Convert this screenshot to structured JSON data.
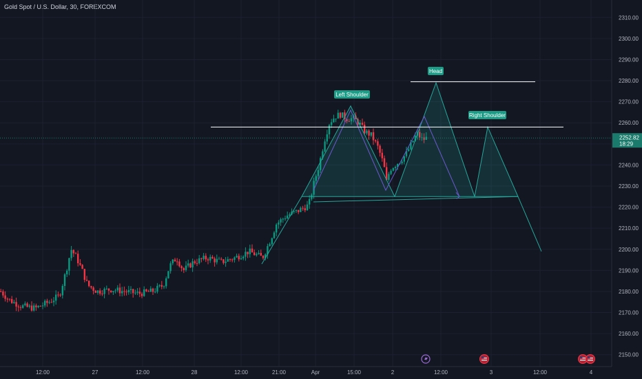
{
  "header": {
    "title": "Gold Spot / U.S. Dollar, 30, FOREXCOM"
  },
  "colors": {
    "background": "#131722",
    "up": "#089981",
    "down": "#f23645",
    "pattern_fill": "#26a69a",
    "pattern_line": "#26a69a",
    "projection_line": "#6a5acd",
    "neckline": "#ffffff",
    "price_tag": "#1a7a6c"
  },
  "chart_data": {
    "type": "candlestick",
    "title": "Gold Spot / U.S. Dollar, 30, FOREXCOM",
    "ylim": [
      2145,
      2315
    ],
    "y_ticks": [
      2150,
      2160,
      2170,
      2180,
      2190,
      2200,
      2210,
      2220,
      2230,
      2240,
      2250,
      2260,
      2270,
      2280,
      2290,
      2300,
      2310
    ],
    "x_ticks": [
      "12:00",
      "27",
      "12:00",
      "28",
      "12:00",
      "21:00",
      "Apr",
      "15:00",
      "2",
      "12:00",
      "3",
      "12:00",
      "4"
    ],
    "last_price": "2252.82",
    "countdown": "18:29",
    "price_path": [
      [
        0,
        2180
      ],
      [
        12,
        2176
      ],
      [
        30,
        2173
      ],
      [
        50,
        2172
      ],
      [
        70,
        2175
      ],
      [
        85,
        2178
      ],
      [
        95,
        2190
      ],
      [
        102,
        2200
      ],
      [
        110,
        2196
      ],
      [
        118,
        2190
      ],
      [
        126,
        2183
      ],
      [
        140,
        2180
      ],
      [
        160,
        2181
      ],
      [
        180,
        2180
      ],
      [
        200,
        2179
      ],
      [
        220,
        2180
      ],
      [
        236,
        2183
      ],
      [
        245,
        2192
      ],
      [
        255,
        2196
      ],
      [
        265,
        2190
      ],
      [
        280,
        2194
      ],
      [
        300,
        2196
      ],
      [
        320,
        2194
      ],
      [
        340,
        2196
      ],
      [
        360,
        2199
      ],
      [
        380,
        2196
      ],
      [
        392,
        2205
      ],
      [
        400,
        2212
      ],
      [
        415,
        2216
      ],
      [
        430,
        2218
      ],
      [
        447,
        2221
      ],
      [
        455,
        2232
      ],
      [
        462,
        2240
      ],
      [
        470,
        2252
      ],
      [
        477,
        2260
      ],
      [
        485,
        2263
      ],
      [
        493,
        2264
      ],
      [
        502,
        2262
      ],
      [
        512,
        2262
      ],
      [
        520,
        2260
      ],
      [
        528,
        2256
      ],
      [
        538,
        2254
      ],
      [
        548,
        2248
      ],
      [
        556,
        2240
      ],
      [
        560,
        2232
      ],
      [
        565,
        2238
      ],
      [
        572,
        2240
      ],
      [
        580,
        2242
      ],
      [
        588,
        2245
      ],
      [
        596,
        2250
      ],
      [
        604,
        2255
      ],
      [
        612,
        2252
      ],
      [
        620,
        2253
      ]
    ],
    "patterns": {
      "neckline_price": 2258,
      "left_shoulder": {
        "label": "Left Shoulder",
        "price": 2268,
        "base": 2225
      },
      "head": {
        "label": "Head",
        "price": 2279,
        "base": 2225
      },
      "right_shoulder": {
        "label": "Right Shoulder",
        "price": 2258,
        "base": 2225
      },
      "projection_target": 2199
    }
  },
  "icons": {
    "lightning": "lightning-icon",
    "flag_us": "us-flag-icon"
  }
}
